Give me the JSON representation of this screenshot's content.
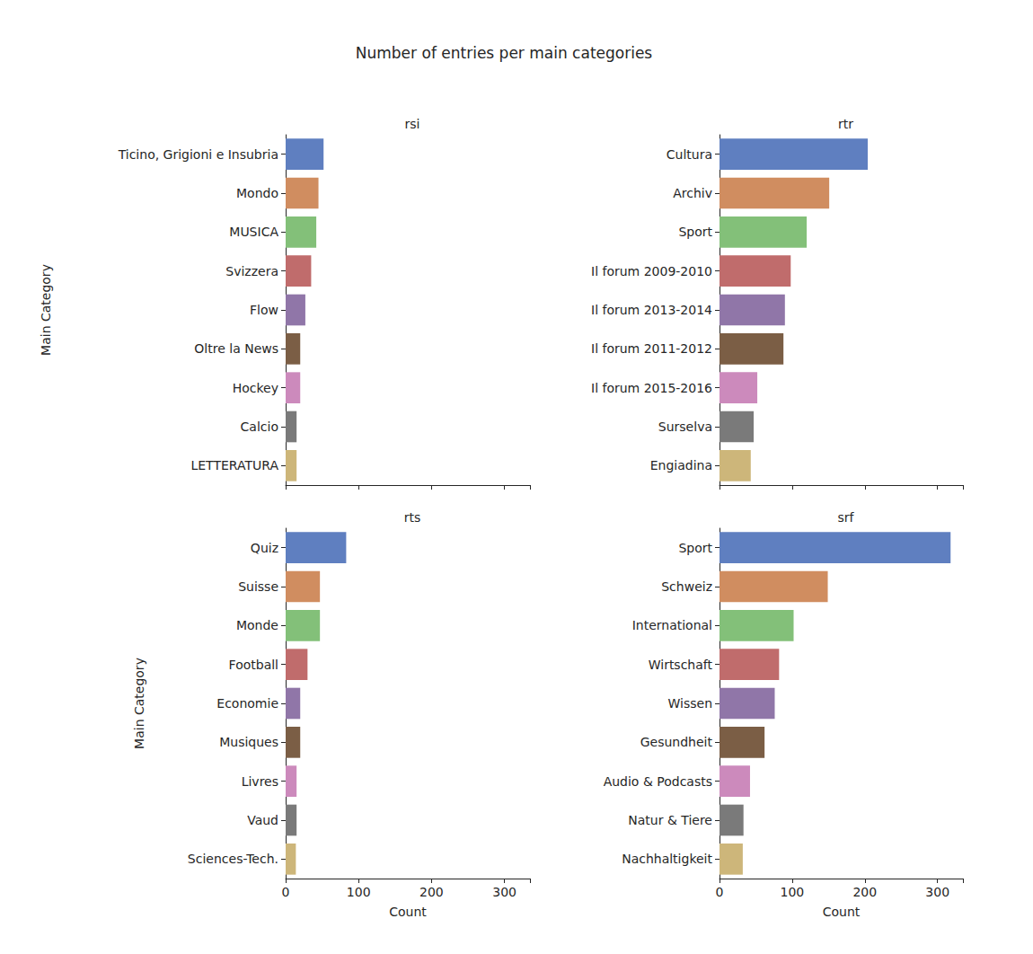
{
  "title": "Number of entries per main categories",
  "chart_data": [
    {
      "type": "bar",
      "orientation": "horizontal",
      "title": "rsi",
      "y_label": "Main Category",
      "categories": [
        "Ticino, Grigioni e Insubria",
        "Mondo",
        "MUSICA",
        "Svizzera",
        "Flow",
        "Oltre la News",
        "Hockey",
        "Calcio",
        "LETTERATURA"
      ],
      "values": [
        52,
        45,
        42,
        35,
        27,
        20,
        20,
        15,
        15
      ],
      "colors": [
        "#5f7fc0",
        "#d08d60",
        "#83c079",
        "#c06c6c",
        "#9076a8",
        "#7b5e45",
        "#cc8abc",
        "#7a7a7a",
        "#cdb67a"
      ],
      "xlim": [
        0,
        335
      ],
      "xticks": [
        0,
        100,
        200,
        300
      ],
      "grid": false,
      "tick_labels": "y"
    },
    {
      "type": "bar",
      "orientation": "horizontal",
      "title": "rtr",
      "categories": [
        "Cultura",
        "Archiv",
        "Sport",
        "Il forum 2009-2010",
        "Il forum 2013-2014",
        "Il forum 2011-2012",
        "Il forum 2015-2016",
        "Surselva",
        "Engiadina"
      ],
      "values": [
        204,
        151,
        120,
        98,
        90,
        88,
        52,
        47,
        43
      ],
      "colors": [
        "#5f7fc0",
        "#d08d60",
        "#83c079",
        "#c06c6c",
        "#9076a8",
        "#7b5e45",
        "#cc8abc",
        "#7a7a7a",
        "#cdb67a"
      ],
      "xlim": [
        0,
        335
      ],
      "xticks": [
        0,
        100,
        200,
        300
      ],
      "grid": false,
      "tick_labels": "y"
    },
    {
      "type": "bar",
      "orientation": "horizontal",
      "title": "rts",
      "y_label": "Main Category",
      "x_label": "Count",
      "categories": [
        "Quiz",
        "Suisse",
        "Monde",
        "Football",
        "Economie",
        "Musiques",
        "Livres",
        "Vaud",
        "Sciences-Tech."
      ],
      "values": [
        83,
        47,
        47,
        30,
        20,
        20,
        15,
        15,
        14
      ],
      "colors": [
        "#5f7fc0",
        "#d08d60",
        "#83c079",
        "#c06c6c",
        "#9076a8",
        "#7b5e45",
        "#cc8abc",
        "#7a7a7a",
        "#cdb67a"
      ],
      "xlim": [
        0,
        335
      ],
      "xticks": [
        0,
        100,
        200,
        300
      ],
      "grid": false
    },
    {
      "type": "bar",
      "orientation": "horizontal",
      "title": "srf",
      "x_label": "Count",
      "categories": [
        "Sport",
        "Schweiz",
        "International",
        "Wirtschaft",
        "Wissen",
        "Gesundheit",
        "Audio & Podcasts",
        "Natur & Tiere",
        "Nachhaltigkeit"
      ],
      "values": [
        318,
        149,
        102,
        82,
        76,
        62,
        42,
        33,
        32
      ],
      "colors": [
        "#5f7fc0",
        "#d08d60",
        "#83c079",
        "#c06c6c",
        "#9076a8",
        "#7b5e45",
        "#cc8abc",
        "#7a7a7a",
        "#cdb67a"
      ],
      "xlim": [
        0,
        335
      ],
      "xticks": [
        0,
        100,
        200,
        300
      ],
      "grid": false
    }
  ]
}
